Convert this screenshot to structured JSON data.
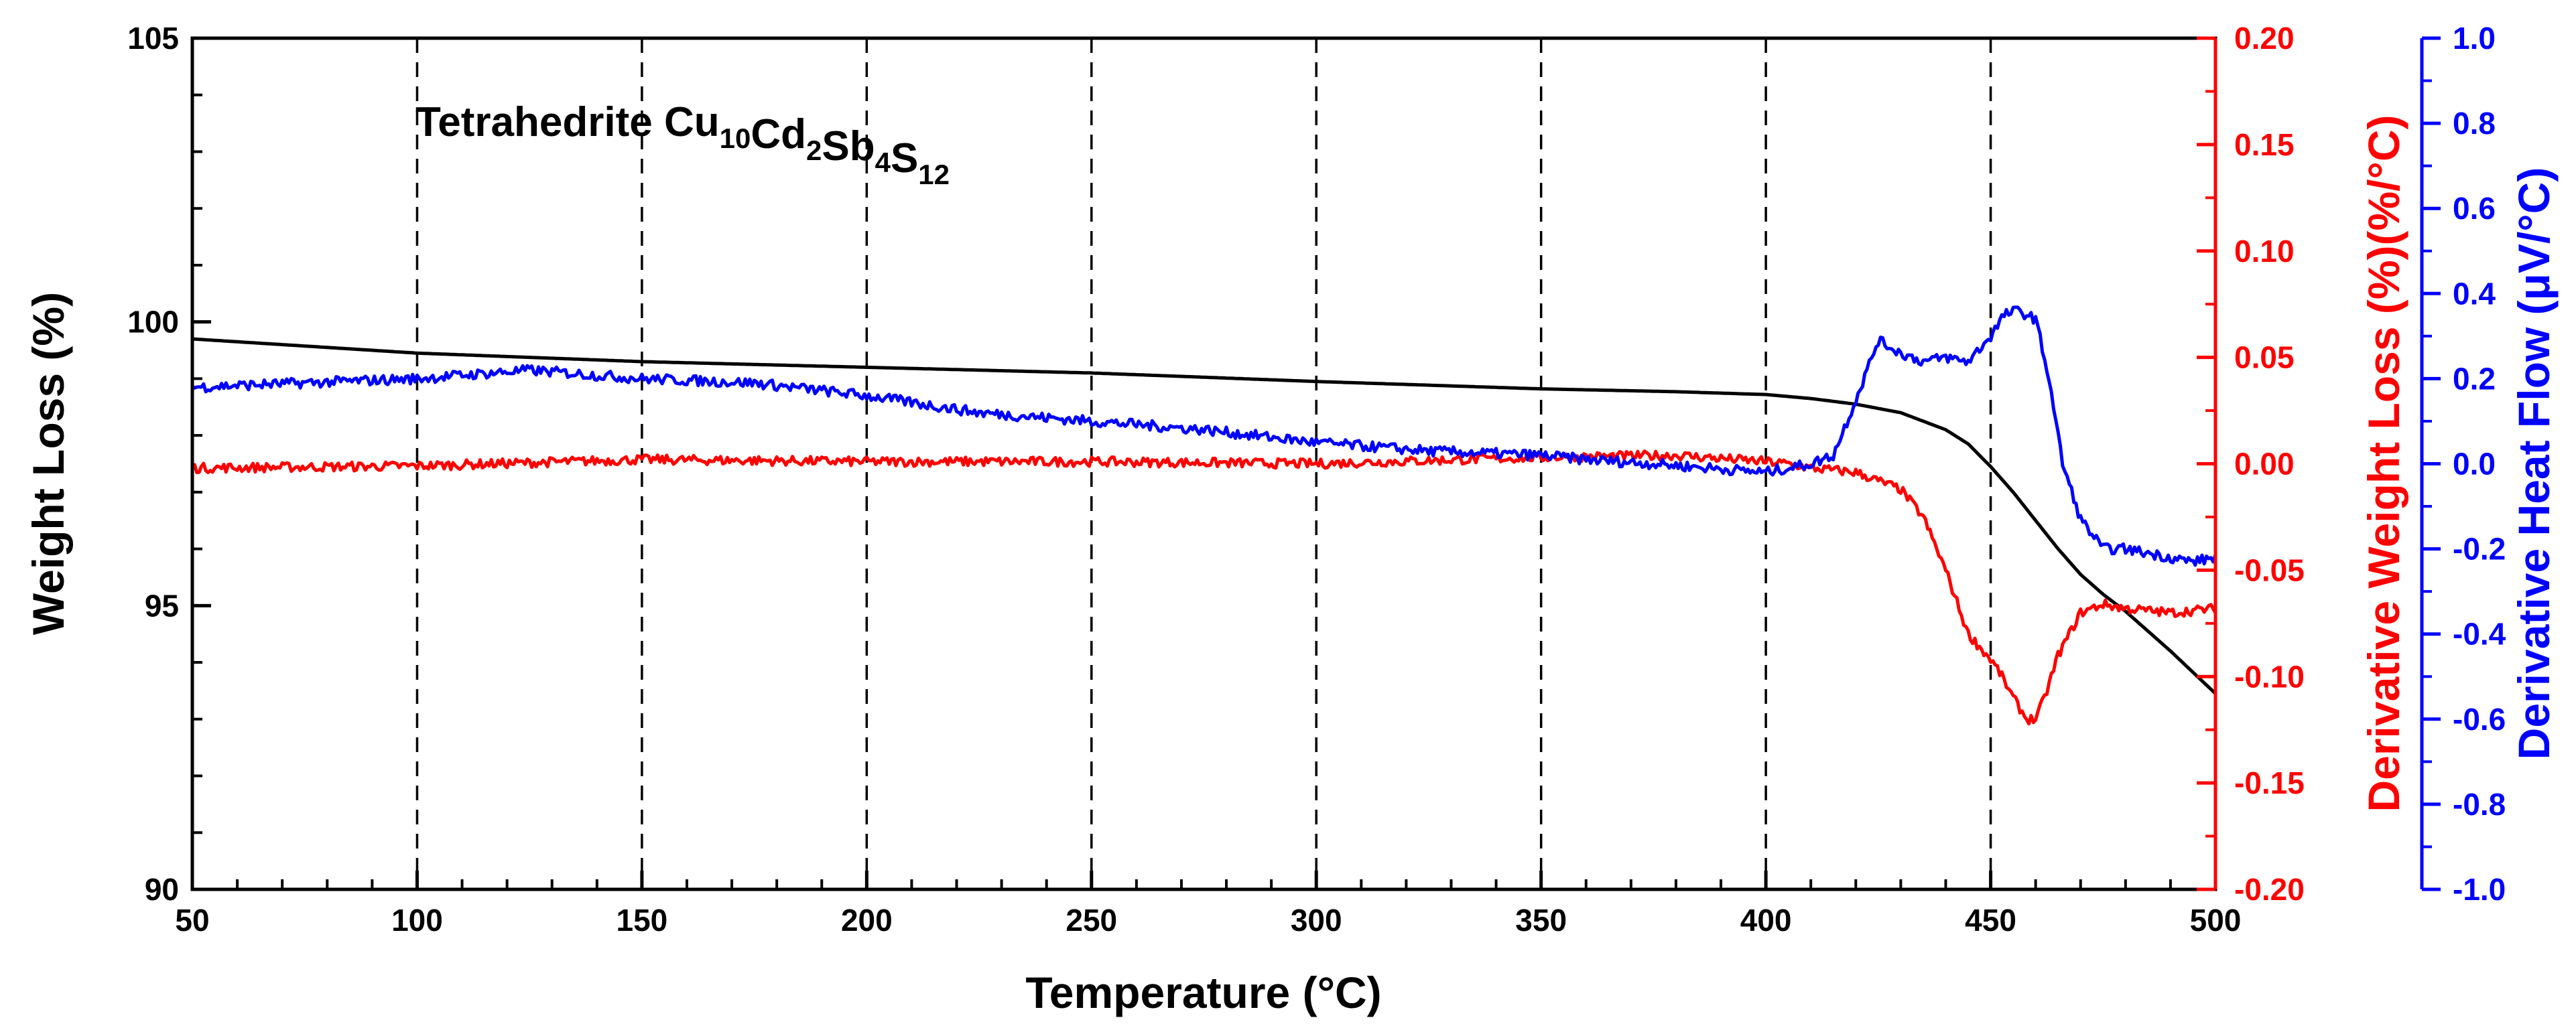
{
  "chart_data": {
    "type": "line",
    "annotation": {
      "prefix": "Tetrahedrite ",
      "parts": [
        {
          "text": "Cu",
          "sub": "10"
        },
        {
          "text": "Cd",
          "sub": "2"
        },
        {
          "text": "Sb",
          "sub": "4"
        },
        {
          "text": "S",
          "sub": "12"
        }
      ]
    },
    "xlabel": "Temperature (°C)",
    "xlim": [
      50,
      500
    ],
    "xticks": [
      "50",
      "100",
      "150",
      "200",
      "250",
      "300",
      "350",
      "400",
      "450",
      "500"
    ],
    "xtick_values": [
      50,
      100,
      150,
      200,
      250,
      300,
      350,
      400,
      450,
      500
    ],
    "vgrid_values": [
      100,
      150,
      200,
      250,
      300,
      350,
      400,
      450
    ],
    "grid": "dashed vertical lines at major x ticks",
    "axes": {
      "left": {
        "label": "Weight Loss (%)",
        "ylim": [
          90,
          105
        ],
        "ticks": [
          "90",
          "95",
          "100",
          "105"
        ],
        "tick_values": [
          90,
          95,
          100,
          105
        ],
        "color": "#000000"
      },
      "right1": {
        "label": "Derivative Weight Loss (%)(%/°C)",
        "ylim": [
          -0.2,
          0.2
        ],
        "ticks": [
          "-0.20",
          "-0.15",
          "-0.10",
          "-0.05",
          "0.00",
          "0.05",
          "0.10",
          "0.15",
          "0.20"
        ],
        "tick_values": [
          -0.2,
          -0.15,
          -0.1,
          -0.05,
          0,
          0.05,
          0.1,
          0.15,
          0.2
        ],
        "color": "#ff0000"
      },
      "right2": {
        "label": "Derivative Heat Flow (μV/°C)",
        "ylim": [
          -1.0,
          1.0
        ],
        "ticks": [
          "-1.0",
          "-0.8",
          "-0.6",
          "-0.4",
          "-0.2",
          "0.0",
          "0.2",
          "0.4",
          "0.6",
          "0.8",
          "1.0"
        ],
        "tick_values": [
          -1,
          -0.8,
          -0.6,
          -0.4,
          -0.2,
          0,
          0.2,
          0.4,
          0.6,
          0.8,
          1.0
        ],
        "color": "#0000ff"
      }
    },
    "series": [
      {
        "name": "Weight Loss",
        "axis": "left",
        "color": "#000000",
        "x": [
          50,
          100,
          150,
          200,
          250,
          300,
          350,
          380,
          400,
          410,
          420,
          430,
          440,
          445,
          450,
          455,
          460,
          465,
          470,
          475,
          480,
          490,
          500
        ],
        "values": [
          99.7,
          99.45,
          99.3,
          99.2,
          99.1,
          98.95,
          98.82,
          98.77,
          98.72,
          98.65,
          98.55,
          98.4,
          98.1,
          97.85,
          97.45,
          97.0,
          96.5,
          96.0,
          95.55,
          95.2,
          94.9,
          94.2,
          93.45
        ]
      },
      {
        "name": "Derivative Weight Loss",
        "axis": "right1",
        "color": "#ff0000",
        "x": [
          50,
          100,
          150,
          200,
          250,
          300,
          350,
          380,
          400,
          405,
          410,
          420,
          430,
          435,
          440,
          445,
          450,
          452,
          455,
          458,
          460,
          462,
          465,
          470,
          475,
          480,
          490,
          500
        ],
        "values": [
          -0.002,
          -0.001,
          0.002,
          0.001,
          0.001,
          0.0,
          0.003,
          0.004,
          0.001,
          0.0,
          -0.002,
          -0.004,
          -0.012,
          -0.025,
          -0.05,
          -0.08,
          -0.092,
          -0.098,
          -0.11,
          -0.12,
          -0.12,
          -0.11,
          -0.09,
          -0.07,
          -0.066,
          -0.068,
          -0.07,
          -0.068
        ]
      },
      {
        "name": "Derivative Heat Flow",
        "axis": "right2",
        "color": "#0000ff",
        "x": [
          50,
          75,
          100,
          125,
          150,
          175,
          200,
          225,
          250,
          275,
          300,
          325,
          350,
          360,
          375,
          400,
          405,
          410,
          415,
          420,
          425,
          430,
          435,
          440,
          445,
          450,
          453,
          456,
          460,
          463,
          466,
          470,
          475,
          480,
          485,
          490,
          495,
          500
        ],
        "values": [
          0.18,
          0.19,
          0.2,
          0.22,
          0.2,
          0.19,
          0.16,
          0.12,
          0.1,
          0.08,
          0.05,
          0.03,
          0.02,
          0.01,
          0.0,
          -0.02,
          -0.01,
          0.0,
          0.02,
          0.15,
          0.29,
          0.26,
          0.24,
          0.25,
          0.24,
          0.3,
          0.35,
          0.36,
          0.34,
          0.2,
          0.0,
          -0.13,
          -0.2,
          -0.2,
          -0.21,
          -0.22,
          -0.23,
          -0.22
        ]
      }
    ]
  }
}
